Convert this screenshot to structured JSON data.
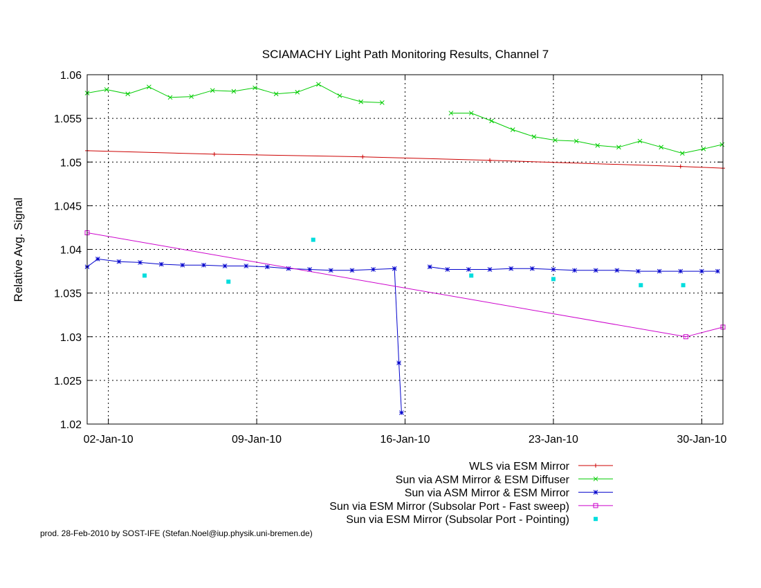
{
  "chart_data": {
    "type": "line",
    "title": "SCIAMACHY Light Path Monitoring Results, Channel 7",
    "xlabel": "",
    "ylabel": "Relative Avg. Signal",
    "x_type": "date",
    "xlim": [
      "2010-01-01",
      "2010-01-31"
    ],
    "ylim": [
      1.02,
      1.06
    ],
    "x_ticks": [
      {
        "value": "2010-01-02",
        "label": "02-Jan-10"
      },
      {
        "value": "2010-01-09",
        "label": "09-Jan-10"
      },
      {
        "value": "2010-01-16",
        "label": "16-Jan-10"
      },
      {
        "value": "2010-01-23",
        "label": "23-Jan-10"
      },
      {
        "value": "2010-01-30",
        "label": "30-Jan-10"
      }
    ],
    "y_ticks": [
      1.02,
      1.025,
      1.03,
      1.035,
      1.04,
      1.045,
      1.05,
      1.055,
      1.06
    ],
    "y_tick_labels": [
      "1.02",
      "1.025",
      "1.03",
      "1.035",
      "1.04",
      "1.045",
      "1.05",
      "1.055",
      "1.06"
    ],
    "grid": true,
    "legend_position": "bottom-right",
    "series": [
      {
        "name": "WLS via ESM Mirror",
        "color": "#cc0000",
        "marker": "plus",
        "points": [
          [
            "2010-01-01T00:00",
            1.0513
          ],
          [
            "2010-01-07T00:00",
            1.0509
          ],
          [
            "2010-01-14T00:00",
            1.0506
          ],
          [
            "2010-01-20T00:00",
            1.0502
          ],
          [
            "2010-01-29T00:00",
            1.0495
          ],
          [
            "2010-01-31T00:00",
            1.0493
          ]
        ]
      },
      {
        "name": "Sun via ASM Mirror & ESM Diffuser",
        "color": "#00cc00",
        "marker": "cross",
        "points": [
          [
            "2010-01-01T00:00",
            1.0579
          ],
          [
            "2010-01-01T22:00",
            1.0583
          ],
          [
            "2010-01-02T22:00",
            1.0578
          ],
          [
            "2010-01-03T22:00",
            1.0586
          ],
          [
            "2010-01-04T22:00",
            1.0574
          ],
          [
            "2010-01-05T22:00",
            1.0575
          ],
          [
            "2010-01-06T22:00",
            1.0582
          ],
          [
            "2010-01-07T22:00",
            1.0581
          ],
          [
            "2010-01-08T22:00",
            1.0585
          ],
          [
            "2010-01-09T22:00",
            1.0578
          ],
          [
            "2010-01-10T22:00",
            1.058
          ],
          [
            "2010-01-11T22:00",
            1.0589
          ],
          [
            "2010-01-12T22:00",
            1.0576
          ],
          [
            "2010-01-13T22:00",
            1.0569
          ],
          [
            "2010-01-14T22:00",
            1.0568
          ],
          null,
          [
            "2010-01-18T04:00",
            1.0556
          ],
          [
            "2010-01-19T03:00",
            1.0556
          ],
          [
            "2010-01-20T02:00",
            1.0547
          ],
          [
            "2010-01-21T02:00",
            1.0537
          ],
          [
            "2010-01-22T02:00",
            1.0529
          ],
          [
            "2010-01-23T02:00",
            1.0525
          ],
          [
            "2010-01-24T02:00",
            1.0524
          ],
          [
            "2010-01-25T02:00",
            1.0519
          ],
          [
            "2010-01-26T02:00",
            1.0517
          ],
          [
            "2010-01-27T02:00",
            1.0524
          ],
          [
            "2010-01-28T02:00",
            1.0517
          ],
          [
            "2010-01-29T02:00",
            1.051
          ],
          [
            "2010-01-30T02:00",
            1.0515
          ],
          [
            "2010-01-30T23:00",
            1.052
          ]
        ]
      },
      {
        "name": "Sun via ASM Mirror & ESM Mirror",
        "color": "#0000cc",
        "marker": "star",
        "points": [
          [
            "2010-01-01T00:00",
            1.038
          ],
          [
            "2010-01-01T12:00",
            1.0389
          ],
          [
            "2010-01-02T12:00",
            1.0386
          ],
          [
            "2010-01-03T12:00",
            1.0385
          ],
          [
            "2010-01-04T12:00",
            1.0383
          ],
          [
            "2010-01-05T12:00",
            1.0382
          ],
          [
            "2010-01-06T12:00",
            1.0382
          ],
          [
            "2010-01-07T12:00",
            1.0381
          ],
          [
            "2010-01-08T12:00",
            1.0381
          ],
          [
            "2010-01-09T12:00",
            1.038
          ],
          [
            "2010-01-10T12:00",
            1.0378
          ],
          [
            "2010-01-11T12:00",
            1.0377
          ],
          [
            "2010-01-12T12:00",
            1.0376
          ],
          [
            "2010-01-13T12:00",
            1.0376
          ],
          [
            "2010-01-14T12:00",
            1.0377
          ],
          [
            "2010-01-15T12:00",
            1.0378
          ],
          [
            "2010-01-15T17:00",
            1.027
          ],
          [
            "2010-01-15T20:00",
            1.0213
          ],
          null,
          [
            "2010-01-17T04:00",
            1.038
          ],
          [
            "2010-01-18T00:00",
            1.0377
          ],
          [
            "2010-01-19T00:00",
            1.0377
          ],
          [
            "2010-01-20T00:00",
            1.0377
          ],
          [
            "2010-01-21T00:00",
            1.0378
          ],
          [
            "2010-01-22T00:00",
            1.0378
          ],
          [
            "2010-01-23T00:00",
            1.0377
          ],
          [
            "2010-01-24T00:00",
            1.0376
          ],
          [
            "2010-01-25T00:00",
            1.0376
          ],
          [
            "2010-01-26T00:00",
            1.0376
          ],
          [
            "2010-01-27T00:00",
            1.0375
          ],
          [
            "2010-01-28T00:00",
            1.0375
          ],
          [
            "2010-01-29T00:00",
            1.0375
          ],
          [
            "2010-01-30T00:00",
            1.0375
          ],
          [
            "2010-01-30T18:00",
            1.0375
          ]
        ]
      },
      {
        "name": "Sun via ESM Mirror (Subsolar Port - Fast sweep)",
        "color": "#cc00cc",
        "marker": "square-open",
        "points": [
          [
            "2010-01-01T00:00",
            1.0419
          ],
          [
            "2010-01-29T06:00",
            1.03
          ],
          [
            "2010-01-31T00:00",
            1.0311
          ]
        ]
      },
      {
        "name": "Sun via ESM Mirror (Subsolar Port - Pointing)",
        "color": "#00dddd",
        "marker": "square-filled",
        "line": false,
        "points": [
          [
            "2010-01-03T17:00",
            1.037
          ],
          [
            "2010-01-07T16:00",
            1.0363
          ],
          [
            "2010-01-11T16:00",
            1.0411
          ],
          [
            "2010-01-19T03:00",
            1.037
          ],
          [
            "2010-01-23T00:00",
            1.0366
          ],
          [
            "2010-01-27T03:00",
            1.0359
          ],
          [
            "2010-01-29T03:00",
            1.0359
          ]
        ]
      }
    ]
  },
  "credit": "prod. 28-Feb-2010 by SOST-IFE (Stefan.Noel@iup.physik.uni-bremen.de)"
}
